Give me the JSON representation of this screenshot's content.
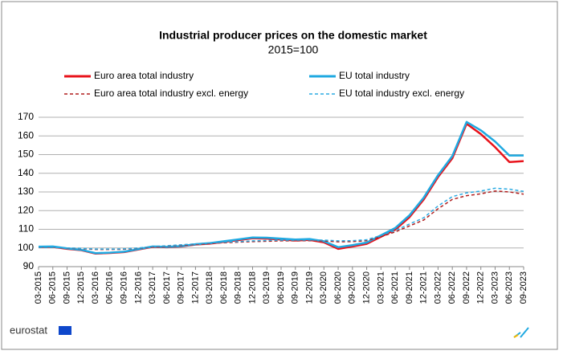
{
  "chart_data": {
    "type": "line",
    "title": "Industrial producer prices on the domestic market",
    "subtitle": "2015=100",
    "logo": "eurostat",
    "categories": [
      "03-2015",
      "06-2015",
      "09-2015",
      "12-2015",
      "03-2016",
      "06-2016",
      "09-2016",
      "12-2016",
      "03-2017",
      "06-2017",
      "09-2017",
      "12-2017",
      "03-2018",
      "06-2018",
      "09-2018",
      "12-2018",
      "03-2019",
      "06-2019",
      "09-2019",
      "12-2019",
      "03-2020",
      "06-2020",
      "09-2020",
      "12-2020",
      "03-2021",
      "06-2021",
      "09-2021",
      "12-2021",
      "03-2022",
      "06-2022",
      "09-2022",
      "12-2022",
      "03-2023",
      "06-2023",
      "09-2023"
    ],
    "series": [
      {
        "name": "Euro area total industry",
        "color": "#e8131b",
        "dash": false,
        "values": [
          100.5,
          100.6,
          99.5,
          98.8,
          97.0,
          97.3,
          97.8,
          99.2,
          100.6,
          100.4,
          100.8,
          101.8,
          102.3,
          103.3,
          104.2,
          105.2,
          105.0,
          104.5,
          104.0,
          104.3,
          103.0,
          99.5,
          100.8,
          102.2,
          106.0,
          109.8,
          116.5,
          126.0,
          138.0,
          148.0,
          166.5,
          161.0,
          154.0,
          146.0,
          146.5
        ]
      },
      {
        "name": "EU total industry",
        "color": "#1fa9e1",
        "dash": false,
        "values": [
          100.7,
          100.8,
          99.8,
          99.0,
          97.2,
          97.5,
          98.0,
          99.4,
          100.8,
          100.6,
          101.0,
          102.0,
          102.6,
          103.6,
          104.6,
          105.6,
          105.5,
          105.0,
          104.5,
          104.8,
          103.6,
          100.4,
          101.5,
          102.9,
          106.8,
          110.7,
          117.5,
          127.0,
          139.0,
          149.2,
          167.5,
          163.0,
          157.0,
          149.5,
          149.5
        ]
      },
      {
        "name": "Euro area total industry excl. energy",
        "color": "#b01c1c",
        "dash": true,
        "values": [
          100.2,
          100.2,
          99.9,
          99.6,
          99.2,
          99.2,
          99.3,
          99.8,
          100.6,
          101.0,
          101.4,
          101.9,
          102.4,
          102.8,
          103.1,
          103.4,
          103.6,
          103.8,
          103.8,
          103.9,
          103.8,
          103.3,
          103.4,
          103.9,
          106.0,
          108.6,
          111.8,
          115.0,
          121.0,
          126.0,
          128.0,
          129.0,
          130.5,
          130.0,
          128.8
        ]
      },
      {
        "name": "EU total industry excl. energy",
        "color": "#2aaae2",
        "dash": true,
        "values": [
          100.3,
          100.3,
          100.0,
          99.8,
          99.4,
          99.4,
          99.5,
          100.0,
          100.8,
          101.2,
          101.7,
          102.2,
          102.7,
          103.1,
          103.4,
          103.8,
          104.0,
          104.2,
          104.2,
          104.3,
          104.2,
          103.8,
          103.9,
          104.4,
          106.7,
          109.4,
          112.8,
          116.2,
          122.5,
          127.5,
          129.5,
          130.5,
          132.0,
          131.5,
          130.3
        ]
      }
    ],
    "ylim": [
      90,
      170
    ],
    "yticks": [
      90,
      100,
      110,
      120,
      130,
      140,
      150,
      160,
      170
    ],
    "grid": true
  }
}
